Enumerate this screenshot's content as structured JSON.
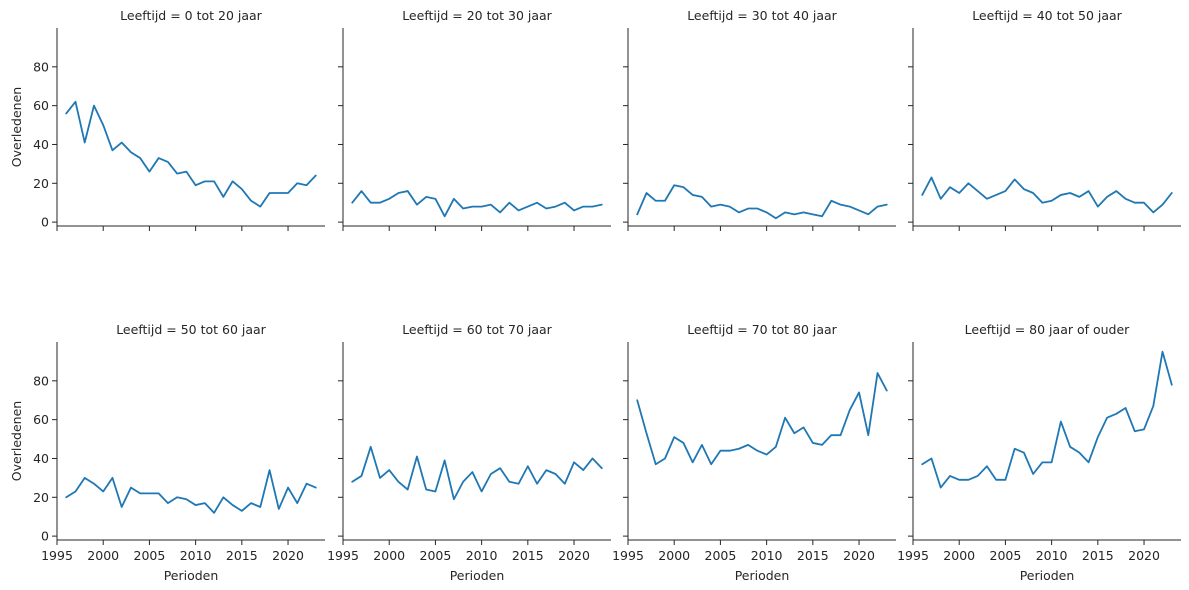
{
  "chart_data": {
    "type": "line",
    "colors": {
      "line": "#1f77b4",
      "axis": "#262626"
    },
    "xlabel": "Perioden",
    "ylabel": "Overledenen",
    "xlim": [
      1995,
      2024
    ],
    "ylim": [
      -2,
      100
    ],
    "xticks": [
      1995,
      2000,
      2005,
      2010,
      2015,
      2020
    ],
    "yticks": [
      0,
      20,
      40,
      60,
      80
    ],
    "grid": false,
    "x": [
      1996,
      1997,
      1998,
      1999,
      2000,
      2001,
      2002,
      2003,
      2004,
      2005,
      2006,
      2007,
      2008,
      2009,
      2010,
      2011,
      2012,
      2013,
      2014,
      2015,
      2016,
      2017,
      2018,
      2019,
      2020,
      2021,
      2022,
      2023
    ],
    "panels": [
      {
        "title": "Leeftijd = 0 tot 20 jaar",
        "values": [
          56,
          62,
          41,
          60,
          50,
          37,
          41,
          36,
          33,
          26,
          33,
          31,
          25,
          26,
          19,
          21,
          21,
          13,
          21,
          17,
          11,
          8,
          15,
          15,
          15,
          20,
          19,
          24
        ]
      },
      {
        "title": "Leeftijd = 20 tot 30 jaar",
        "values": [
          10,
          16,
          10,
          10,
          12,
          15,
          16,
          9,
          13,
          12,
          3,
          12,
          7,
          8,
          8,
          9,
          5,
          10,
          6,
          8,
          10,
          7,
          8,
          10,
          6,
          8,
          8,
          9
        ]
      },
      {
        "title": "Leeftijd = 30 tot 40 jaar",
        "values": [
          4,
          15,
          11,
          11,
          19,
          18,
          14,
          13,
          8,
          9,
          8,
          5,
          7,
          7,
          5,
          2,
          5,
          4,
          5,
          4,
          3,
          11,
          9,
          8,
          6,
          4,
          8,
          9
        ]
      },
      {
        "title": "Leeftijd = 40 tot 50 jaar",
        "values": [
          14,
          23,
          12,
          18,
          15,
          20,
          16,
          12,
          14,
          16,
          22,
          17,
          15,
          10,
          11,
          14,
          15,
          13,
          16,
          8,
          13,
          16,
          12,
          10,
          10,
          5,
          9,
          15
        ]
      },
      {
        "title": "Leeftijd = 50 tot 60 jaar",
        "values": [
          20,
          23,
          30,
          27,
          23,
          30,
          15,
          25,
          22,
          22,
          22,
          17,
          20,
          19,
          16,
          17,
          12,
          20,
          16,
          13,
          17,
          15,
          34,
          14,
          25,
          17,
          27,
          25
        ]
      },
      {
        "title": "Leeftijd = 60 tot 70 jaar",
        "values": [
          28,
          31,
          46,
          30,
          34,
          28,
          24,
          41,
          24,
          23,
          39,
          19,
          28,
          33,
          23,
          32,
          35,
          28,
          27,
          36,
          27,
          34,
          32,
          27,
          38,
          34,
          40,
          35
        ]
      },
      {
        "title": "Leeftijd = 70 tot 80 jaar",
        "values": [
          70,
          53,
          37,
          40,
          51,
          48,
          38,
          47,
          37,
          44,
          44,
          45,
          47,
          44,
          42,
          46,
          61,
          53,
          56,
          48,
          47,
          52,
          52,
          65,
          74,
          52,
          84,
          75
        ]
      },
      {
        "title": "Leeftijd = 80 jaar of ouder",
        "values": [
          37,
          40,
          25,
          31,
          29,
          29,
          31,
          36,
          29,
          29,
          45,
          43,
          32,
          38,
          38,
          59,
          46,
          43,
          38,
          51,
          61,
          63,
          66,
          54,
          55,
          67,
          95,
          78
        ]
      }
    ]
  }
}
